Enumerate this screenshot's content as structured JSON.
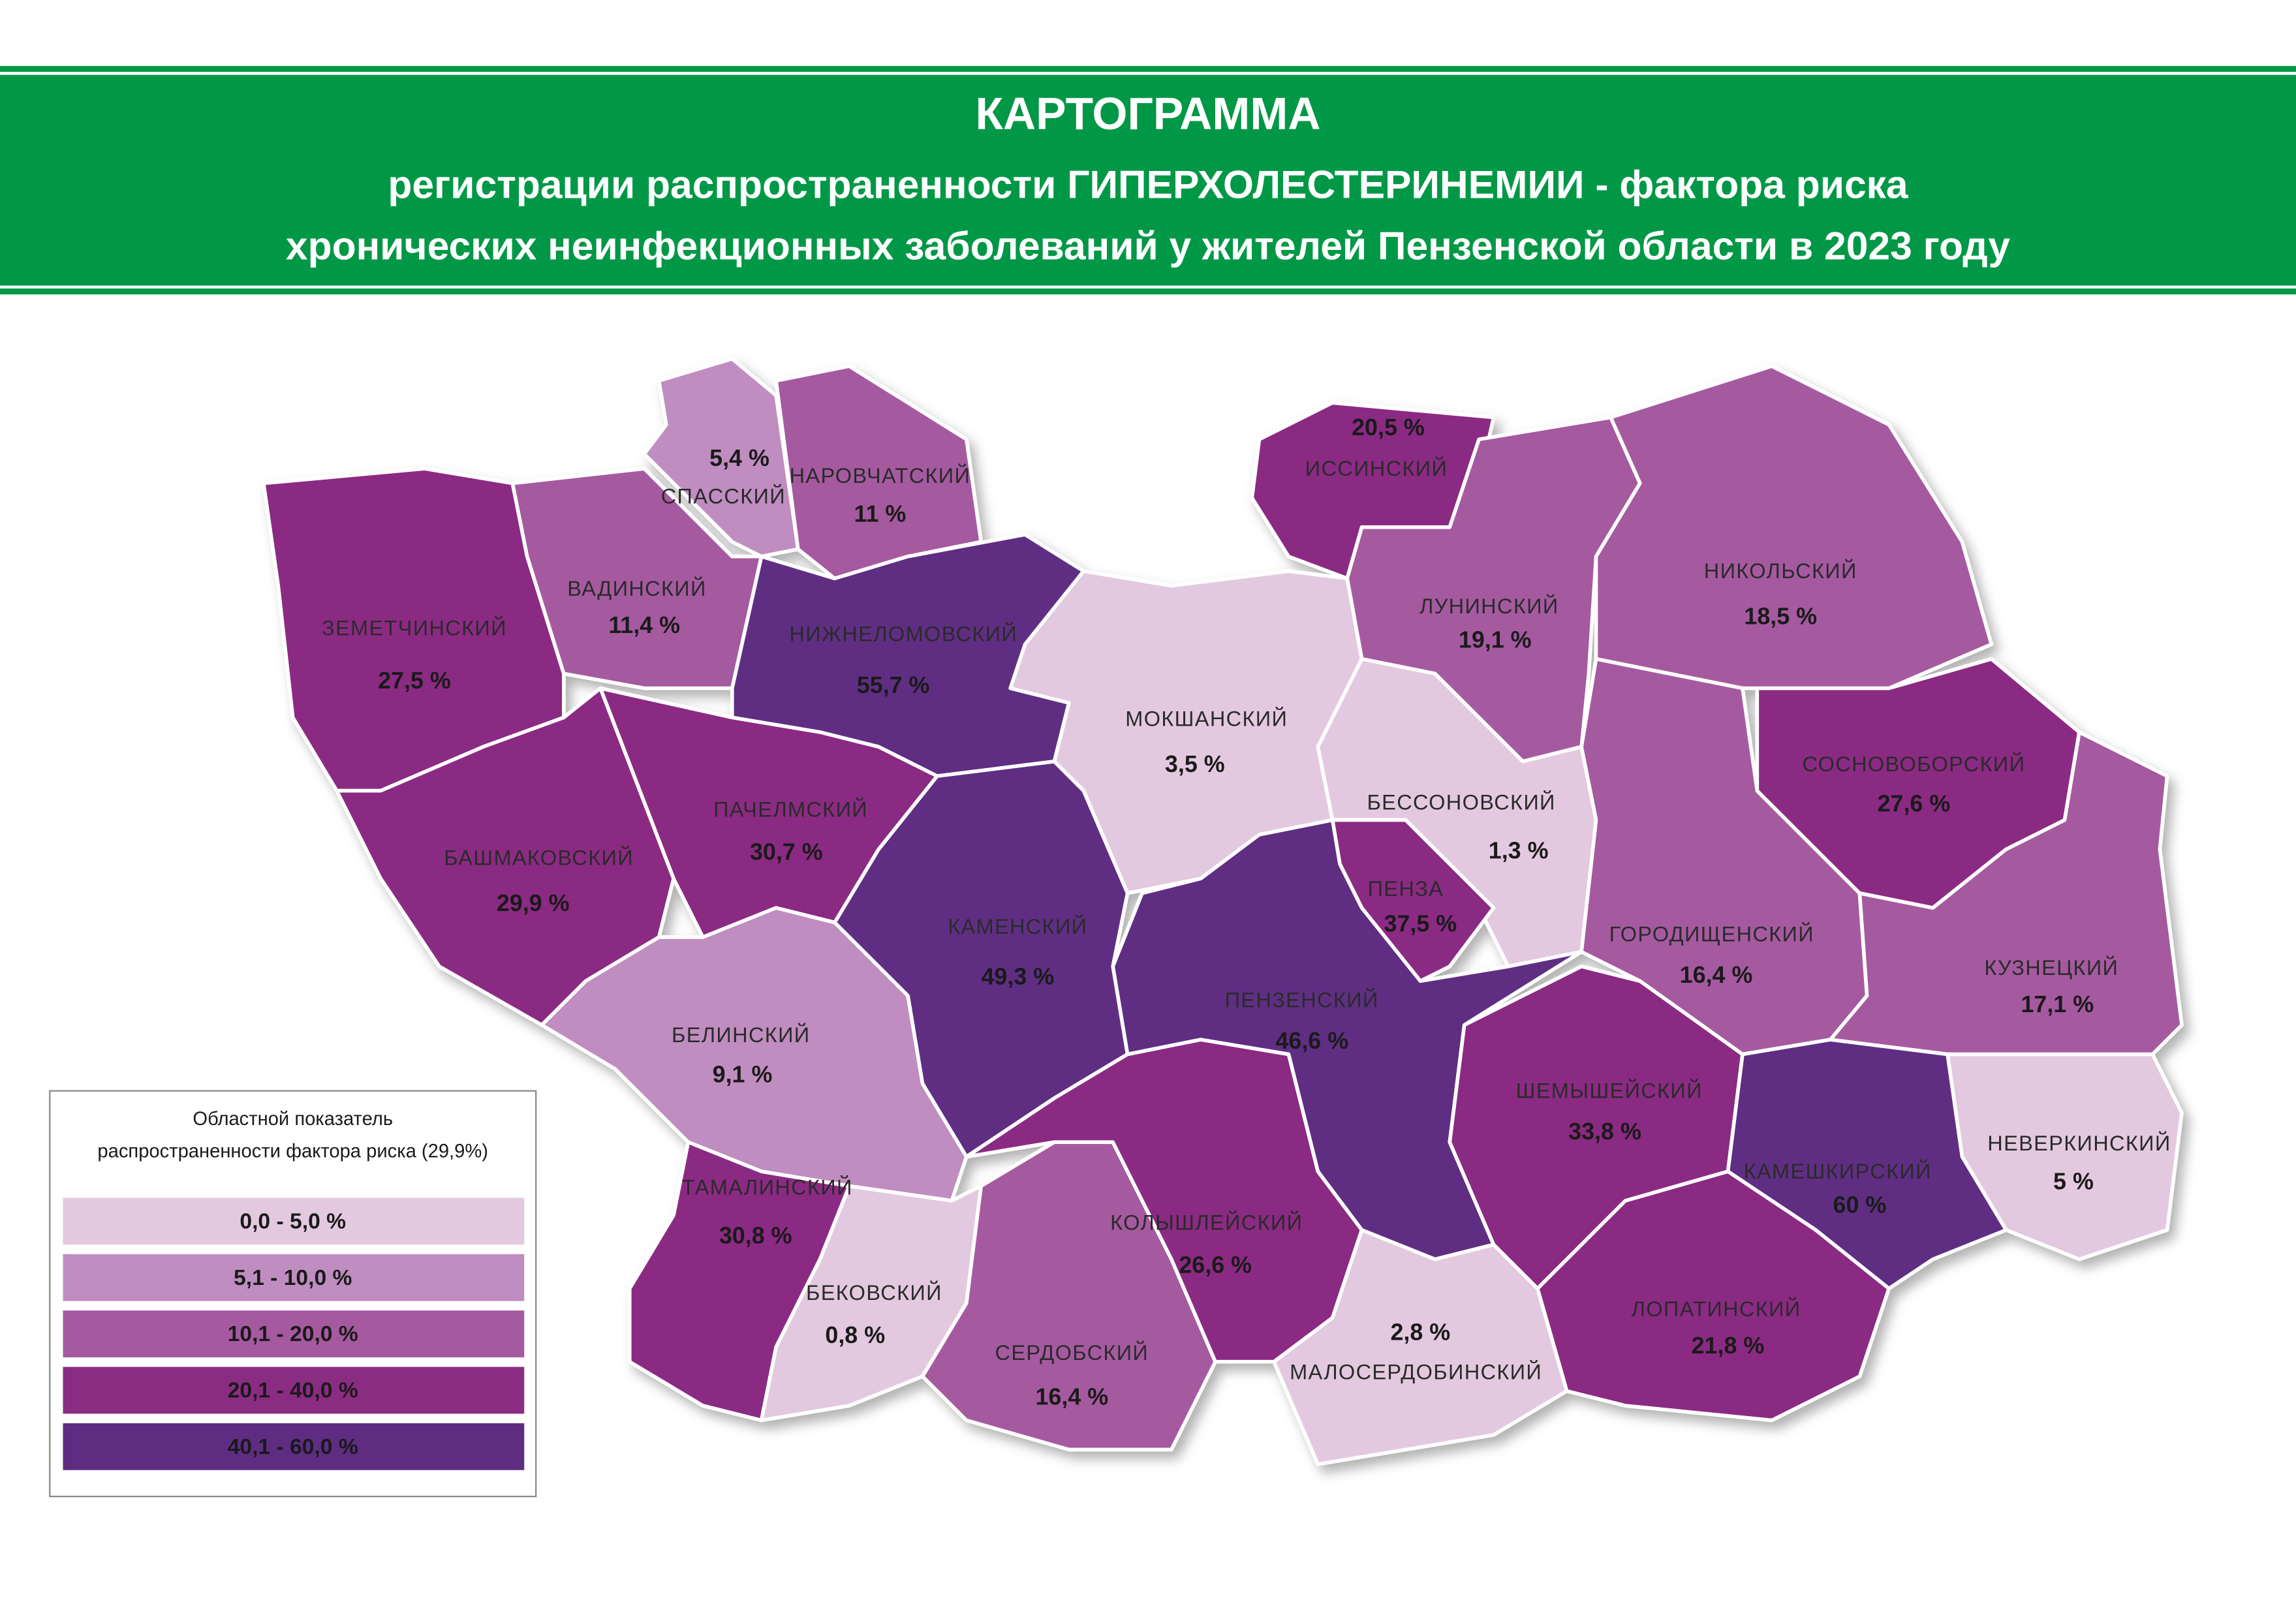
{
  "header": {
    "title": "КАРТОГРАММА",
    "subtitle": [
      "регистрации распространенности ГИПЕРХОЛЕСТЕРИНЕМИИ - фактора риска",
      "хронических неинфекционных заболеваний у жителей Пензенской области в 2023 году"
    ],
    "color": "#009846"
  },
  "regions": [
    {
      "name": "ЗЕМЕТЧИНСКИЙ",
      "value": "27,5 %",
      "color": "#8b2c83"
    },
    {
      "name": "ВАДИНСКИЙ",
      "value": "11,4 %",
      "color": "#a55aa0"
    },
    {
      "name": "СПАССКИЙ",
      "value": "5,4 %",
      "color": "#bf8dc0"
    },
    {
      "name": "НАРОВЧАТСКИЙ",
      "value": "11 %",
      "color": "#a55aa0"
    },
    {
      "name": "НИЖНЕЛОМОВСКИЙ",
      "value": "55,7 %",
      "color": "#5e2d82"
    },
    {
      "name": "ИССИНСКИЙ",
      "value": "20,5 %",
      "color": "#8b2c83"
    },
    {
      "name": "ЛУНИНСКИЙ",
      "value": "19,1 %",
      "color": "#a55aa0"
    },
    {
      "name": "НИКОЛЬСКИЙ",
      "value": "18,5 %",
      "color": "#a55aa0"
    },
    {
      "name": "МОКШАНСКИЙ",
      "value": "3,5 %",
      "color": "#e3c9e0"
    },
    {
      "name": "БЕССОНОВСКИЙ",
      "value": "1,3 %",
      "color": "#e3c9e0"
    },
    {
      "name": "ПЕНЗА",
      "value": "37,5 %",
      "color": "#8b2c83"
    },
    {
      "name": "ГОРОДИЩЕНСКИЙ",
      "value": "16,4 %",
      "color": "#a55aa0"
    },
    {
      "name": "СОСНОВОБОРСКИЙ",
      "value": "27,6 %",
      "color": "#8b2c83"
    },
    {
      "name": "КУЗНЕЦКИЙ",
      "value": "17,1 %",
      "color": "#a55aa0"
    },
    {
      "name": "НЕВЕРКИНСКИЙ",
      "value": "5 %",
      "color": "#e3c9e0"
    },
    {
      "name": "КАМЕШКИРСКИЙ",
      "value": "60 %",
      "color": "#5e2d82"
    },
    {
      "name": "ЛОПАТИНСКИЙ",
      "value": "21,8 %",
      "color": "#8b2c83"
    },
    {
      "name": "ШЕМЫШЕЙСКИЙ",
      "value": "33,8 %",
      "color": "#8b2c83"
    },
    {
      "name": "ПЕНЗЕНСКИЙ",
      "value": "46,6 %",
      "color": "#5e2d82"
    },
    {
      "name": "КАМЕНСКИЙ",
      "value": "49,3 %",
      "color": "#5e2d82"
    },
    {
      "name": "ПАЧЕЛМСКИЙ",
      "value": "30,7 %",
      "color": "#8b2c83"
    },
    {
      "name": "БАШМАКОВСКИЙ",
      "value": "29,9 %",
      "color": "#8b2c83"
    },
    {
      "name": "БЕЛИНСКИЙ",
      "value": "9,1 %",
      "color": "#bf8dc0"
    },
    {
      "name": "ТАМАЛИНСКИЙ",
      "value": "30,8 %",
      "color": "#8b2c83"
    },
    {
      "name": "БЕКОВСКИЙ",
      "value": "0,8 %",
      "color": "#e3c9e0"
    },
    {
      "name": "СЕРДОБСКИЙ",
      "value": "16,4 %",
      "color": "#a55aa0"
    },
    {
      "name": "КОЛЫШЛЕЙСКИЙ",
      "value": "26,6 %",
      "color": "#8b2c83"
    },
    {
      "name": "МАЛОСЕРДОБИНСКИЙ",
      "value": "2,8 %",
      "color": "#e3c9e0"
    }
  ],
  "legend": {
    "title": [
      "Областной показатель",
      "распространенности фактора риска (29,9%)"
    ],
    "items": [
      {
        "label": "0,0 - 5,0 %",
        "color": "#e3c9e0"
      },
      {
        "label": "5,1 - 10,0 %",
        "color": "#bf8dc0"
      },
      {
        "label": "10,1 - 20,0 %",
        "color": "#a55aa0"
      },
      {
        "label": "20,1 - 40,0 %",
        "color": "#8b2c83"
      },
      {
        "label": "40,1 - 60,0 %",
        "color": "#5e2d82"
      }
    ]
  }
}
